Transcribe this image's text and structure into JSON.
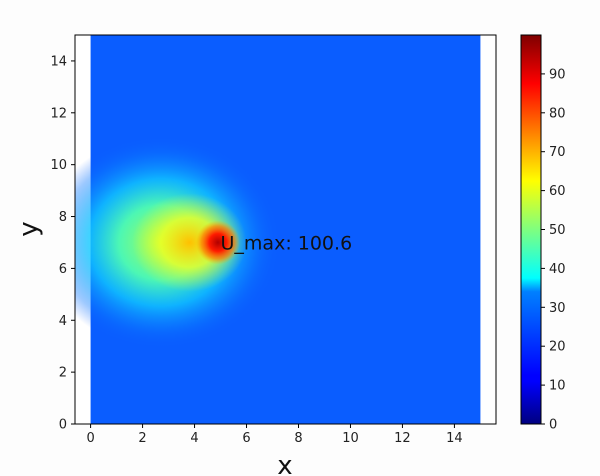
{
  "chart_data": {
    "type": "heatmap",
    "title": "",
    "xlabel": "x",
    "ylabel": "y",
    "xlim": [
      -0.6,
      15.6
    ],
    "ylim": [
      0,
      15
    ],
    "data_extent": {
      "x": [
        0,
        15
      ],
      "y": [
        0,
        15
      ]
    },
    "x_ticks": [
      "0",
      "2",
      "4",
      "6",
      "8",
      "10",
      "12",
      "14"
    ],
    "y_ticks": [
      "0",
      "2",
      "4",
      "6",
      "8",
      "10",
      "12",
      "14"
    ],
    "field": {
      "background_value": 18,
      "peak_value": 100.6,
      "peak_location": [
        5.0,
        7.0
      ]
    },
    "annotation": {
      "text": "U_max: 100.6",
      "x": 5.0,
      "y": 7.0
    },
    "colorbar": {
      "colormap": "jet",
      "range": [
        0,
        100
      ],
      "ticks": [
        "0",
        "10",
        "20",
        "30",
        "40",
        "50",
        "60",
        "70",
        "80",
        "90"
      ]
    },
    "grid": false
  }
}
